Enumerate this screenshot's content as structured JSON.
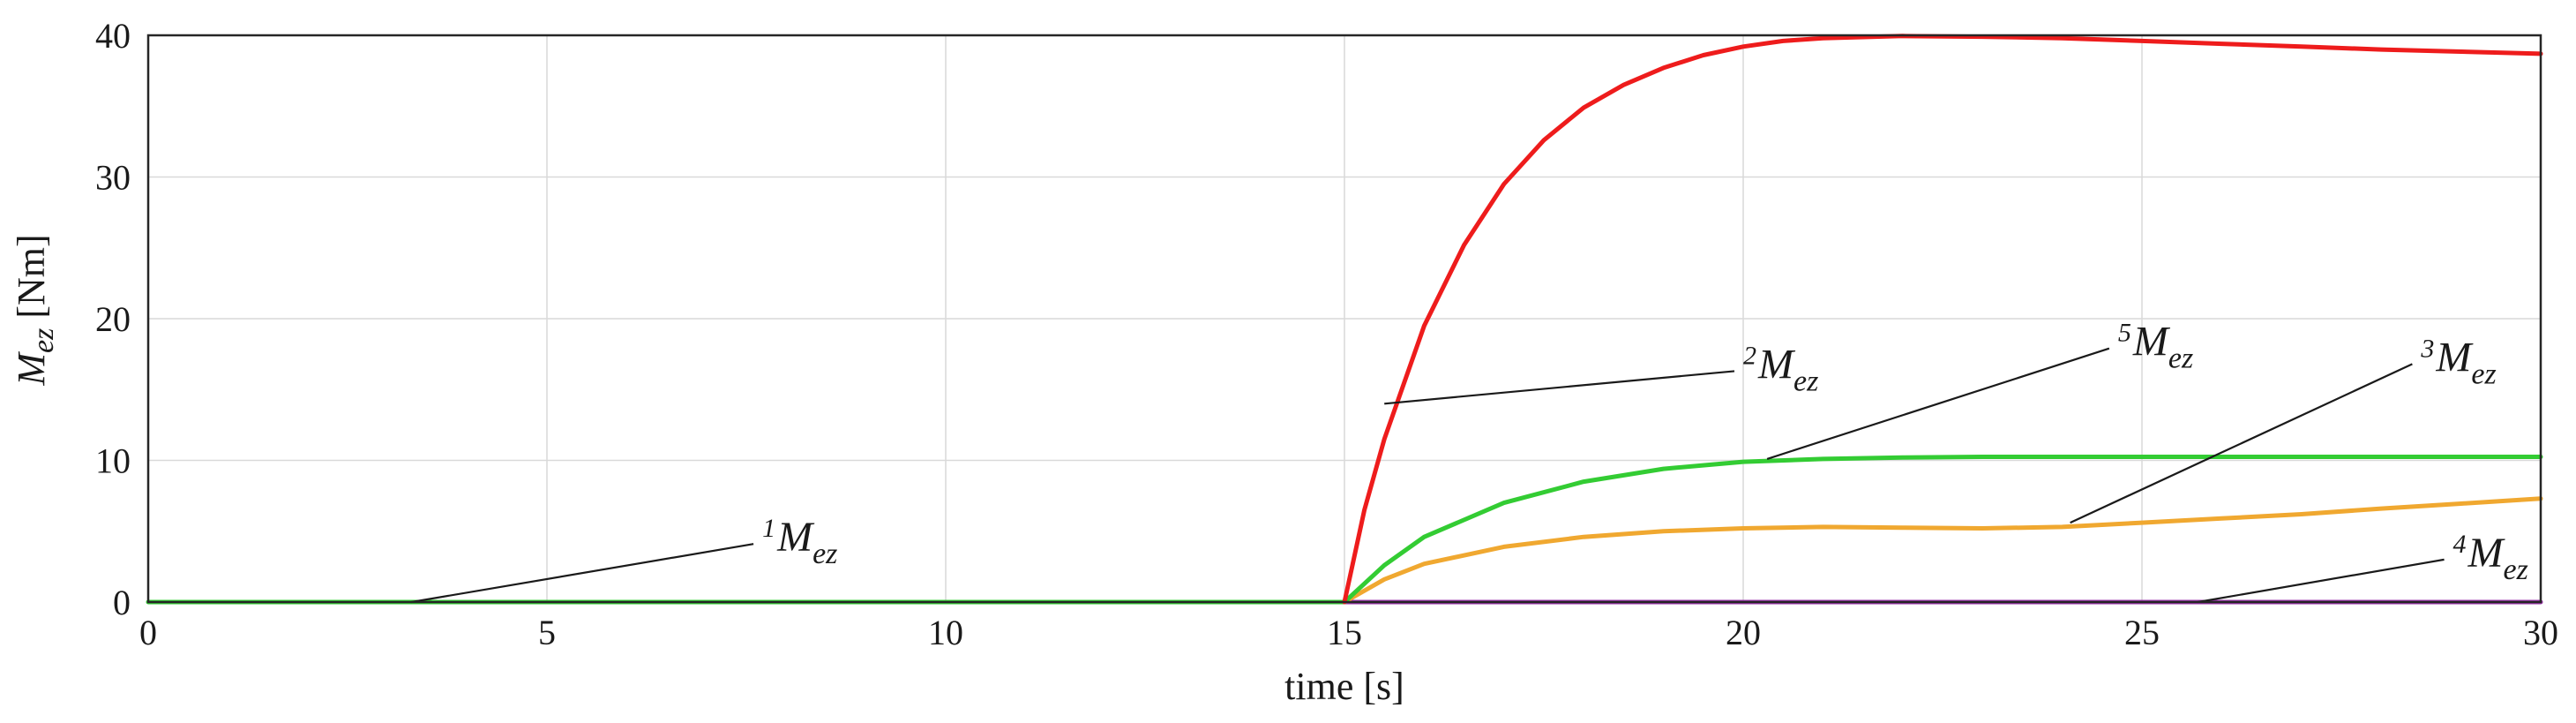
{
  "chart_data": {
    "type": "line",
    "title": "",
    "xlabel": "time [s]",
    "ylabel": {
      "main": "M",
      "sub": "ez",
      "unit": " [Nm]"
    },
    "xlim": [
      0,
      30
    ],
    "ylim": [
      0,
      40
    ],
    "xticks": [
      0,
      5,
      10,
      15,
      20,
      25,
      30
    ],
    "yticks": [
      0,
      10,
      20,
      30,
      40
    ],
    "grid": true,
    "legend": "none",
    "series": [
      {
        "key": "s1",
        "color": "#33cc33",
        "points": [
          [
            0,
            0
          ],
          [
            15,
            0
          ]
        ]
      },
      {
        "key": "s4",
        "color": "#9933aa",
        "points": [
          [
            15,
            0
          ],
          [
            30,
            0
          ]
        ]
      },
      {
        "key": "s3",
        "color": "#f0a830",
        "points": [
          [
            15,
            0
          ],
          [
            15.5,
            1.6
          ],
          [
            16,
            2.7
          ],
          [
            17,
            3.9
          ],
          [
            18,
            4.6
          ],
          [
            19,
            5.0
          ],
          [
            20,
            5.2
          ],
          [
            21,
            5.3
          ],
          [
            22,
            5.25
          ],
          [
            23,
            5.2
          ],
          [
            24,
            5.3
          ],
          [
            25,
            5.6
          ],
          [
            26,
            5.9
          ],
          [
            27,
            6.2
          ],
          [
            28,
            6.6
          ],
          [
            29,
            6.95
          ],
          [
            30,
            7.3
          ]
        ]
      },
      {
        "key": "s5",
        "color": "#33cc33",
        "points": [
          [
            15,
            0
          ],
          [
            15.5,
            2.6
          ],
          [
            16,
            4.6
          ],
          [
            17,
            7.0
          ],
          [
            18,
            8.5
          ],
          [
            19,
            9.4
          ],
          [
            20,
            9.9
          ],
          [
            21,
            10.1
          ],
          [
            22,
            10.2
          ],
          [
            23,
            10.25
          ],
          [
            24,
            10.25
          ],
          [
            25,
            10.25
          ],
          [
            26,
            10.25
          ],
          [
            27,
            10.25
          ],
          [
            28,
            10.25
          ],
          [
            29,
            10.25
          ],
          [
            30,
            10.25
          ]
        ]
      },
      {
        "key": "s2",
        "color": "#ee1c1c",
        "points": [
          [
            15,
            0
          ],
          [
            15.25,
            6.5
          ],
          [
            15.5,
            11.5
          ],
          [
            16,
            19.5
          ],
          [
            16.5,
            25.2
          ],
          [
            17,
            29.5
          ],
          [
            17.5,
            32.6
          ],
          [
            18,
            34.9
          ],
          [
            18.5,
            36.5
          ],
          [
            19,
            37.7
          ],
          [
            19.5,
            38.6
          ],
          [
            20,
            39.2
          ],
          [
            20.5,
            39.6
          ],
          [
            21,
            39.8
          ],
          [
            22,
            39.95
          ],
          [
            23,
            39.9
          ],
          [
            24,
            39.8
          ],
          [
            25,
            39.6
          ],
          [
            26,
            39.4
          ],
          [
            27,
            39.2
          ],
          [
            28,
            39.0
          ],
          [
            29,
            38.85
          ],
          [
            30,
            38.7
          ]
        ]
      }
    ],
    "annotations": [
      {
        "key": "a1",
        "sup": "1",
        "main": "M",
        "sub": "ez",
        "point": [
          3.3,
          0
        ],
        "text_at": [
          7.7,
          3.6
        ]
      },
      {
        "key": "a2",
        "sup": "2",
        "main": "M",
        "sub": "ez",
        "point": [
          15.5,
          14
        ],
        "text_at": [
          20.0,
          15.8
        ]
      },
      {
        "key": "a5",
        "sup": "5",
        "main": "M",
        "sub": "ez",
        "point": [
          20.3,
          10.1
        ],
        "text_at": [
          24.7,
          17.4
        ]
      },
      {
        "key": "a3",
        "sup": "3",
        "main": "M",
        "sub": "ez",
        "point": [
          24.1,
          5.6
        ],
        "text_at": [
          28.5,
          16.3
        ]
      },
      {
        "key": "a4",
        "sup": "4",
        "main": "M",
        "sub": "ez",
        "point": [
          25.7,
          0
        ],
        "text_at": [
          28.9,
          2.5
        ]
      }
    ]
  }
}
